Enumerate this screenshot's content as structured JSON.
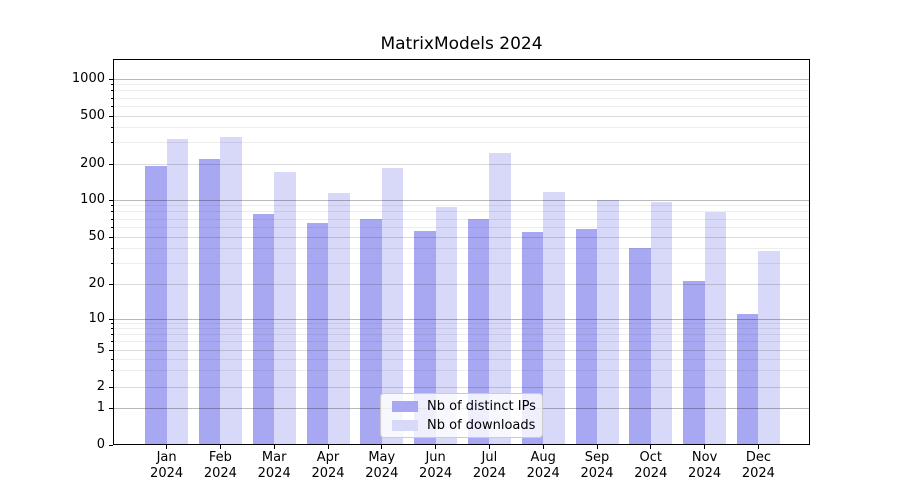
{
  "title": "MatrixModels 2024",
  "chart_data": {
    "type": "bar",
    "title": "MatrixModels 2024",
    "categories": [
      "Jan 2024",
      "Feb 2024",
      "Mar 2024",
      "Apr 2024",
      "May 2024",
      "Jun 2024",
      "Jul 2024",
      "Aug 2024",
      "Sep 2024",
      "Oct 2024",
      "Nov 2024",
      "Dec 2024"
    ],
    "series": [
      {
        "name": "Nb of distinct IPs",
        "color": "#a8a8f2",
        "values": [
          193,
          222,
          77,
          65,
          70,
          56,
          70,
          55,
          58,
          40,
          21,
          11
        ]
      },
      {
        "name": "Nb of downloads",
        "color": "#d8d8f8",
        "values": [
          325,
          338,
          172,
          115,
          186,
          88,
          245,
          116,
          100,
          97,
          80,
          38
        ]
      }
    ],
    "y_axis": {
      "scale": "symlog",
      "tick_labels": [
        "1000",
        "500",
        "200",
        "100",
        "50",
        "20",
        "10",
        "5",
        "2",
        "1",
        "0"
      ],
      "tick_values": [
        1000,
        500,
        200,
        100,
        50,
        20,
        10,
        5,
        2,
        1,
        0
      ],
      "range": [
        0,
        1000
      ],
      "grid": true
    },
    "legend": {
      "position": "lower center",
      "entries": [
        "Nb of distinct IPs",
        "Nb of downloads"
      ]
    }
  }
}
